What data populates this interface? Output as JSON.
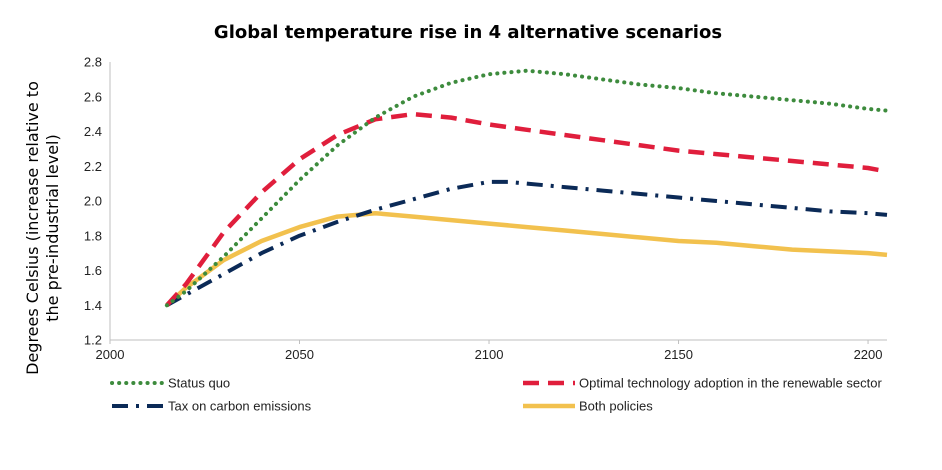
{
  "chart_data": {
    "type": "line",
    "title": "Global temperature rise in 4 alternative scenarios",
    "xlabel": "",
    "ylabel_lines": [
      "Degrees Celsius (increase relative to",
      "the pre-industrial level)"
    ],
    "xlim": [
      2000,
      2205
    ],
    "ylim": [
      1.2,
      2.8
    ],
    "x_ticks": [
      2000,
      2050,
      2100,
      2150,
      2200
    ],
    "x_tick_labels": [
      "2000",
      "2050",
      "2100",
      "2150",
      "2200"
    ],
    "y_ticks": [
      1.2,
      1.4,
      1.6,
      1.8,
      2.0,
      2.2,
      2.4,
      2.6,
      2.8
    ],
    "y_tick_labels": [
      "1.2",
      "1.4",
      "1.6",
      "1.8",
      "2.0",
      "2.2",
      "2.4",
      "2.6",
      "2.8"
    ],
    "grid": false,
    "legend_position": "bottom",
    "series": [
      {
        "name": "Status quo",
        "color": "#3d8b3d",
        "style": "dotted",
        "x": [
          2015,
          2020,
          2030,
          2040,
          2050,
          2060,
          2070,
          2080,
          2090,
          2100,
          2110,
          2120,
          2130,
          2140,
          2150,
          2160,
          2170,
          2180,
          2190,
          2200,
          2205
        ],
        "y": [
          1.4,
          1.48,
          1.68,
          1.9,
          2.12,
          2.32,
          2.48,
          2.6,
          2.68,
          2.73,
          2.75,
          2.73,
          2.7,
          2.67,
          2.65,
          2.62,
          2.6,
          2.58,
          2.56,
          2.53,
          2.52
        ]
      },
      {
        "name": "Optimal technology adoption in the renewable sector",
        "color": "#e01e3c",
        "style": "dashed",
        "x": [
          2015,
          2020,
          2030,
          2040,
          2050,
          2060,
          2070,
          2080,
          2090,
          2100,
          2110,
          2120,
          2130,
          2140,
          2150,
          2160,
          2170,
          2180,
          2190,
          2200,
          2205
        ],
        "y": [
          1.4,
          1.52,
          1.82,
          2.05,
          2.24,
          2.38,
          2.47,
          2.5,
          2.48,
          2.44,
          2.41,
          2.38,
          2.35,
          2.32,
          2.29,
          2.27,
          2.25,
          2.23,
          2.21,
          2.19,
          2.17
        ]
      },
      {
        "name": "Tax on carbon emissions",
        "color": "#0b2a57",
        "style": "dashdot",
        "x": [
          2015,
          2020,
          2030,
          2040,
          2050,
          2060,
          2070,
          2080,
          2090,
          2100,
          2105,
          2110,
          2120,
          2130,
          2140,
          2150,
          2160,
          2170,
          2180,
          2190,
          2200,
          2205
        ],
        "y": [
          1.4,
          1.46,
          1.58,
          1.7,
          1.8,
          1.88,
          1.95,
          2.01,
          2.07,
          2.11,
          2.11,
          2.1,
          2.08,
          2.06,
          2.04,
          2.02,
          2.0,
          1.98,
          1.96,
          1.94,
          1.93,
          1.92
        ]
      },
      {
        "name": "Both policies",
        "color": "#f2c14e",
        "style": "solid",
        "x": [
          2015,
          2020,
          2030,
          2040,
          2050,
          2060,
          2070,
          2080,
          2090,
          2100,
          2110,
          2120,
          2130,
          2140,
          2150,
          2160,
          2170,
          2180,
          2190,
          2200,
          2205
        ],
        "y": [
          1.4,
          1.5,
          1.66,
          1.77,
          1.85,
          1.91,
          1.93,
          1.91,
          1.89,
          1.87,
          1.85,
          1.83,
          1.81,
          1.79,
          1.77,
          1.76,
          1.74,
          1.72,
          1.71,
          1.7,
          1.69
        ]
      }
    ],
    "legend": [
      {
        "label": "Status quo",
        "series": 0
      },
      {
        "label": "Optimal technology adoption in the renewable sector",
        "series": 1
      },
      {
        "label": "Tax on carbon emissions",
        "series": 2
      },
      {
        "label": "Both policies",
        "series": 3
      }
    ]
  }
}
